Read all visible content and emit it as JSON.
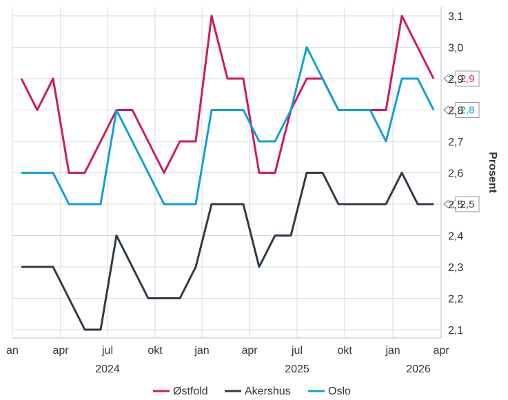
{
  "chart_data": {
    "type": "line",
    "ylabel": "Prosent",
    "ylim": [
      2.08,
      3.12
    ],
    "yticks": [
      "2,1",
      "2,2",
      "2,3",
      "2,4",
      "2,5",
      "2,6",
      "2,7",
      "2,8",
      "2,9",
      "3,0",
      "3,1"
    ],
    "x_tick_labels": [
      "an",
      "apr",
      "jul",
      "okt",
      "jan",
      "apr",
      "jul",
      "okt",
      "jan",
      "apr"
    ],
    "year_labels": [
      "2024",
      "2025",
      "2026"
    ],
    "grid": true,
    "legend_position": "bottom",
    "x": [
      "2024-01",
      "2024-02",
      "2024-03",
      "2024-04",
      "2024-05",
      "2024-06",
      "2024-07",
      "2024-08",
      "2024-09",
      "2024-10",
      "2024-11",
      "2024-12",
      "2025-01",
      "2025-02",
      "2025-03",
      "2025-04",
      "2025-05",
      "2025-06",
      "2025-07",
      "2025-08",
      "2025-09",
      "2025-10",
      "2025-11",
      "2025-12",
      "2026-01",
      "2026-02",
      "2026-03"
    ],
    "series": [
      {
        "name": "Østfold",
        "color": "#d01a5a",
        "values": [
          2.9,
          2.8,
          2.9,
          2.6,
          2.6,
          2.7,
          2.8,
          2.8,
          2.7,
          2.6,
          2.7,
          2.7,
          3.1,
          2.9,
          2.9,
          2.6,
          2.6,
          2.8,
          2.9,
          2.9,
          2.8,
          2.8,
          2.8,
          2.8,
          3.1,
          3.0,
          2.9
        ],
        "end_label": "2,9"
      },
      {
        "name": "Akershus",
        "color": "#2e3b48",
        "values": [
          2.3,
          2.3,
          2.3,
          2.2,
          2.1,
          2.1,
          2.4,
          2.3,
          2.2,
          2.2,
          2.2,
          2.3,
          2.5,
          2.5,
          2.5,
          2.3,
          2.4,
          2.4,
          2.6,
          2.6,
          2.5,
          2.5,
          2.5,
          2.5,
          2.6,
          2.5,
          2.5
        ],
        "end_label": "2,5"
      },
      {
        "name": "Oslo",
        "color": "#0ea0d8",
        "values": [
          2.6,
          2.6,
          2.6,
          2.5,
          2.5,
          2.5,
          2.8,
          2.7,
          2.6,
          2.5,
          2.5,
          2.5,
          2.8,
          2.8,
          2.8,
          2.7,
          2.7,
          2.8,
          3.0,
          2.9,
          2.8,
          2.8,
          2.8,
          2.7,
          2.9,
          2.9,
          2.8
        ],
        "end_label": "2,8"
      }
    ]
  }
}
